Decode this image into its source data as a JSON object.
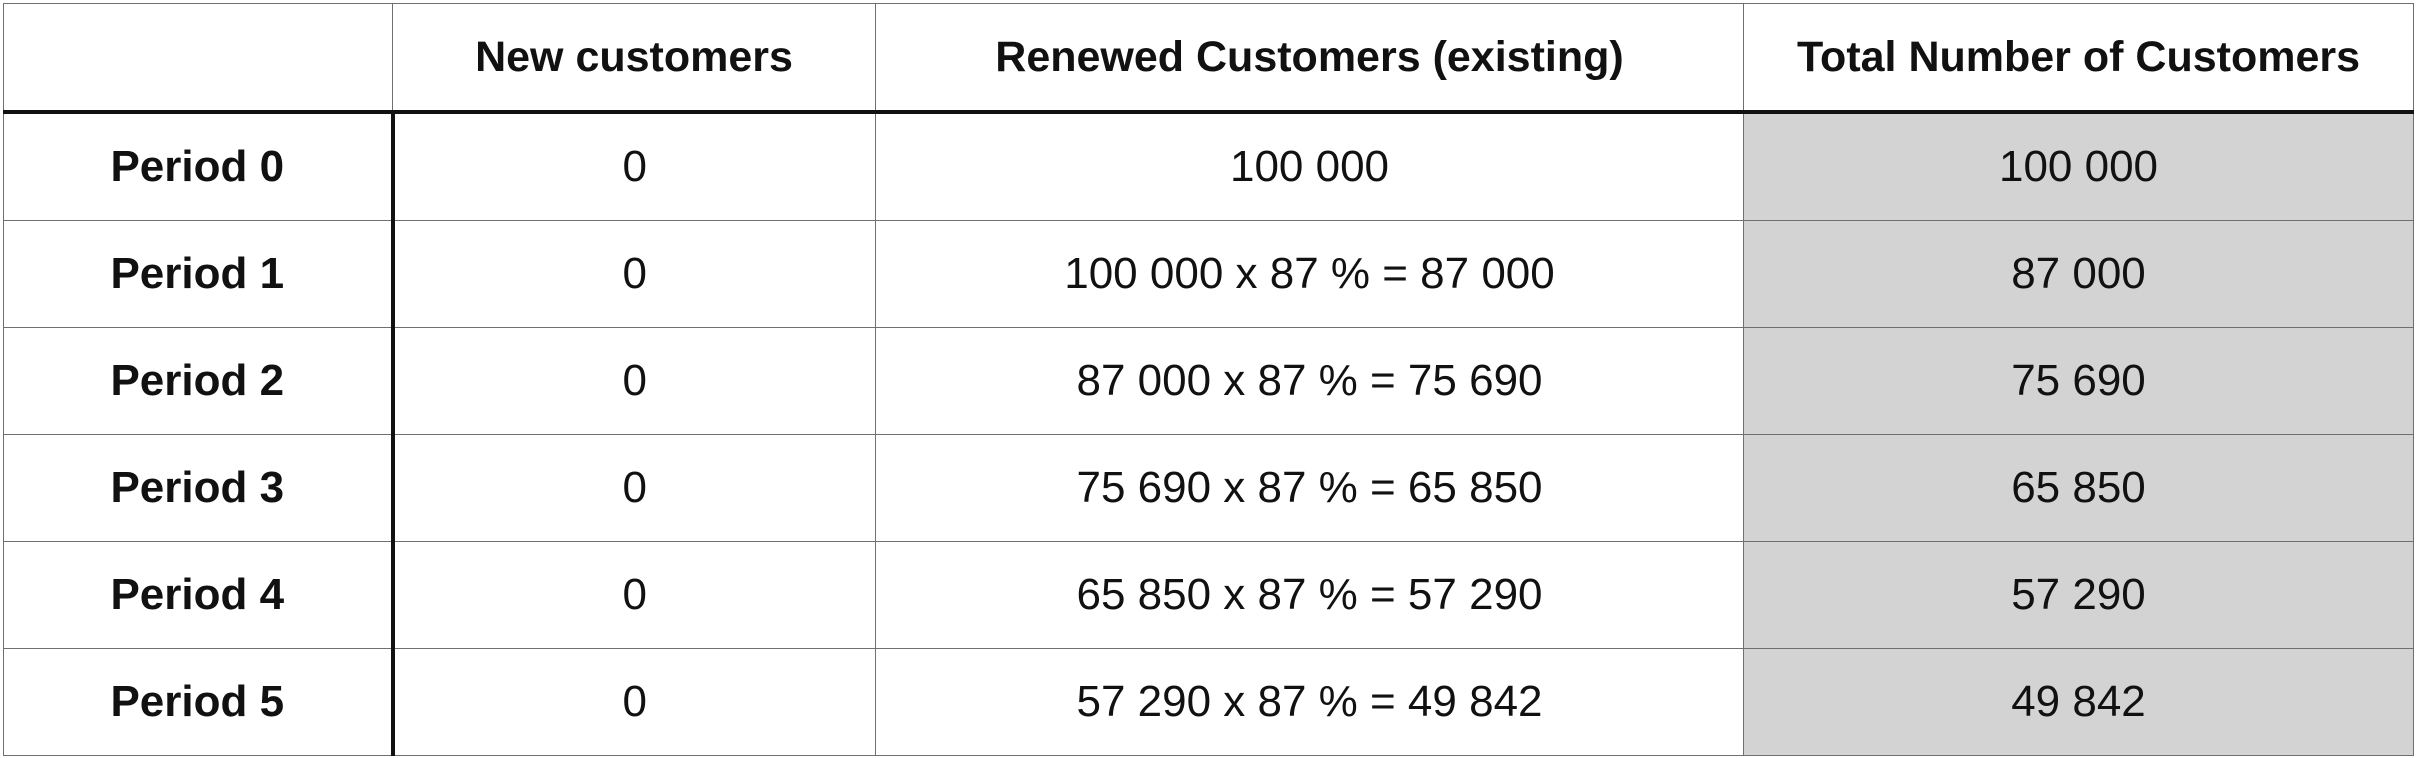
{
  "table": {
    "headers": [
      "",
      "New customers",
      "Renewed Customers (existing)",
      "Total Number of Customers"
    ],
    "rows": [
      {
        "period": "Period 0",
        "new": "0",
        "renewed": "100 000",
        "total": "100 000"
      },
      {
        "period": "Period 1",
        "new": "0",
        "renewed": "100 000 x 87 % = 87 000",
        "total": "87 000"
      },
      {
        "period": "Period 2",
        "new": "0",
        "renewed": "87 000 x 87 % = 75 690",
        "total": "75 690"
      },
      {
        "period": "Period 3",
        "new": "0",
        "renewed": "75 690 x 87 % = 65 850",
        "total": "65 850"
      },
      {
        "period": "Period 4",
        "new": "0",
        "renewed": "65 850 x 87 % = 57 290",
        "total": "57 290"
      },
      {
        "period": "Period 5",
        "new": "0",
        "renewed": "57 290 x 87 % = 49 842",
        "total": "49 842"
      }
    ]
  },
  "colors": {
    "total_column_background": "#d3d3d3",
    "heavy_border": "#111111",
    "grid_line": "#6f6f6f"
  }
}
